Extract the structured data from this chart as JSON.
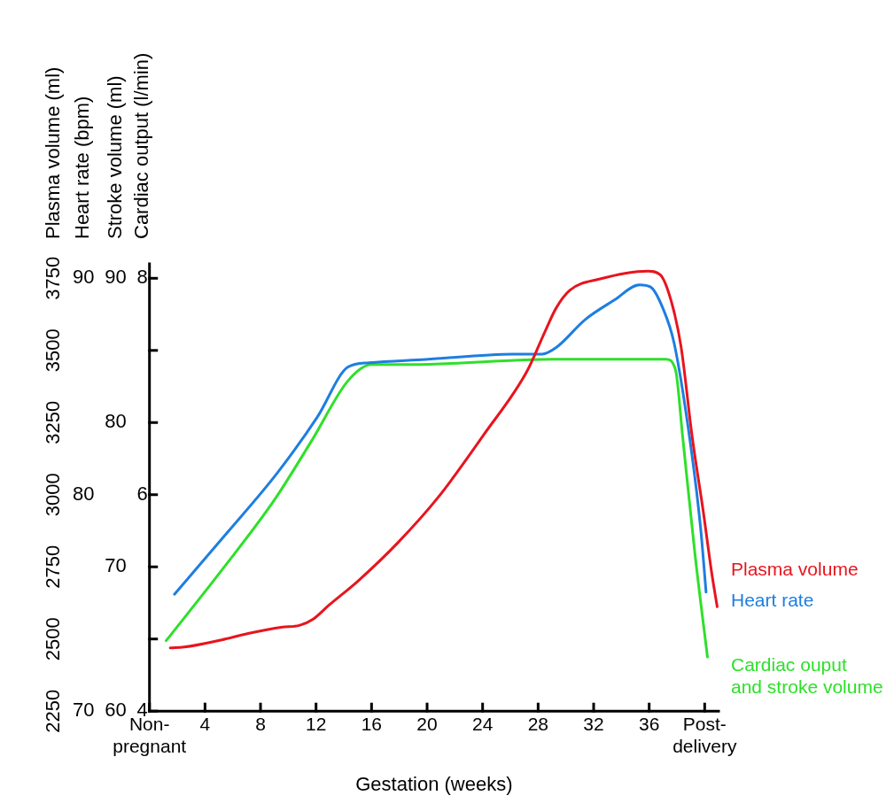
{
  "chart_data": {
    "type": "line",
    "xlabel": "Gestation (weeks)",
    "ylabel": "Plasma volume (ml)",
    "y2label": "Heart rate (bpm)",
    "y3label": "Cardiac output (l/min)",
    "annotations": [
      "Stroke volume (ml)",
      "60",
      "70",
      "80",
      "90"
    ],
    "xlim": [
      0,
      41
    ],
    "xticks": [
      {
        "value": 0,
        "label": "Non-pregnant"
      },
      4,
      8,
      12,
      16,
      20,
      24,
      28,
      32,
      36,
      {
        "value": 40,
        "label": "Post-delivery"
      }
    ],
    "ylim": [
      2250,
      3800
    ],
    "yticks": [
      2250,
      2500,
      2750,
      3000,
      3250,
      3500,
      3750
    ],
    "y2lim": [
      70,
      90.67
    ],
    "y2ticks": [
      70,
      80,
      90
    ],
    "y3lim": [
      4,
      8.13
    ],
    "y3ticks": [
      4,
      6,
      8
    ],
    "grid": false,
    "legend": false,
    "marker": "none",
    "line_style": "solid",
    "series": [
      {
        "name": "Plasma volume",
        "color": "#e8141e",
        "axis": "y",
        "x": [
          1.5,
          2.5,
          5.2,
          7.1,
          9.6,
          10.8,
          11.8,
          12.9,
          15,
          17.9,
          20.8,
          24.1,
          27.2,
          28.5,
          29.3,
          30.3,
          32.4,
          35.9,
          36.8,
          37.6,
          38.3,
          39.1,
          39.9,
          40.5,
          40.9
        ],
        "values": [
          2469,
          2472,
          2497,
          2519,
          2541,
          2547,
          2569,
          2616,
          2700,
          2834,
          2991,
          3209,
          3428,
          3566,
          3647,
          3709,
          3747,
          3775,
          3762,
          3669,
          3512,
          3200,
          2941,
          2731,
          2612
        ]
      },
      {
        "name": "Heart rate",
        "color": "#1e7ee0",
        "axis": "y2",
        "x": [
          1.8,
          5.4,
          9.2,
          12.1,
          14.3,
          15.8,
          19.9,
          26.2,
          28.3,
          29.3,
          31.4,
          33.5,
          35.3,
          36.1,
          37,
          37.8,
          38.9,
          39.7,
          40.1
        ],
        "values": [
          75.4,
          78.1,
          81,
          83.6,
          85.9,
          86.1,
          86.25,
          86.5,
          86.5,
          86.8,
          88.1,
          89,
          89.7,
          89.6,
          88.6,
          87,
          82.7,
          78.5,
          75.5
        ]
      },
      {
        "name": "Cardiac ouput and stroke volume",
        "color": "#2ee02a",
        "axis": "y3",
        "x": [
          1.2,
          5.2,
          9,
          11.7,
          14.3,
          16,
          18.9,
          29.1,
          31.4,
          37.2,
          37.9,
          38.4,
          39.3,
          40.2
        ],
        "values": [
          4.65,
          5.3,
          5.95,
          6.5,
          7.05,
          7.2,
          7.2,
          7.25,
          7.25,
          7.25,
          7.15,
          6.55,
          5.45,
          4.5
        ]
      }
    ]
  }
}
